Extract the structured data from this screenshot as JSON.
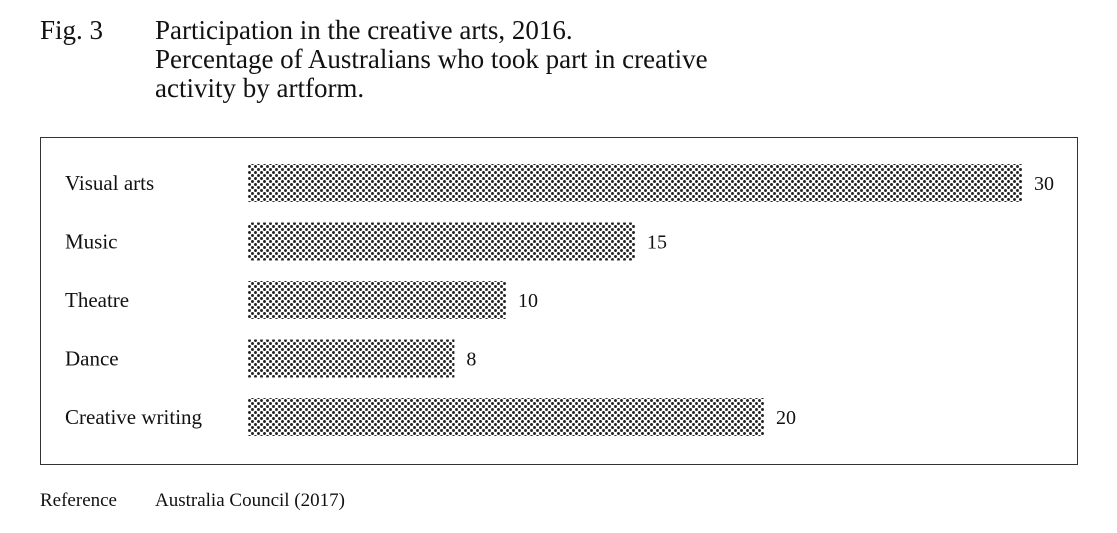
{
  "figure": {
    "number": "Fig. 3",
    "title_lines": [
      "Participation in the creative arts, 2016.",
      "Percentage of Australians who took part in creative",
      "activity by artform."
    ]
  },
  "reference": {
    "label": "Reference",
    "text": "Australia Council (2017)"
  },
  "chart_data": {
    "type": "bar",
    "orientation": "horizontal",
    "categories": [
      "Visual arts",
      "Music",
      "Theatre",
      "Dance",
      "Creative writing"
    ],
    "values": [
      30,
      15,
      10,
      8,
      20
    ],
    "data_labels": [
      "30",
      "15",
      "10",
      "8",
      "20"
    ],
    "xlim": [
      0,
      30
    ],
    "grid": false,
    "legend": "none",
    "bar_fill": "dotted",
    "colors": {
      "dot": "#222222",
      "frame": "#333333",
      "text": "#111111"
    }
  }
}
